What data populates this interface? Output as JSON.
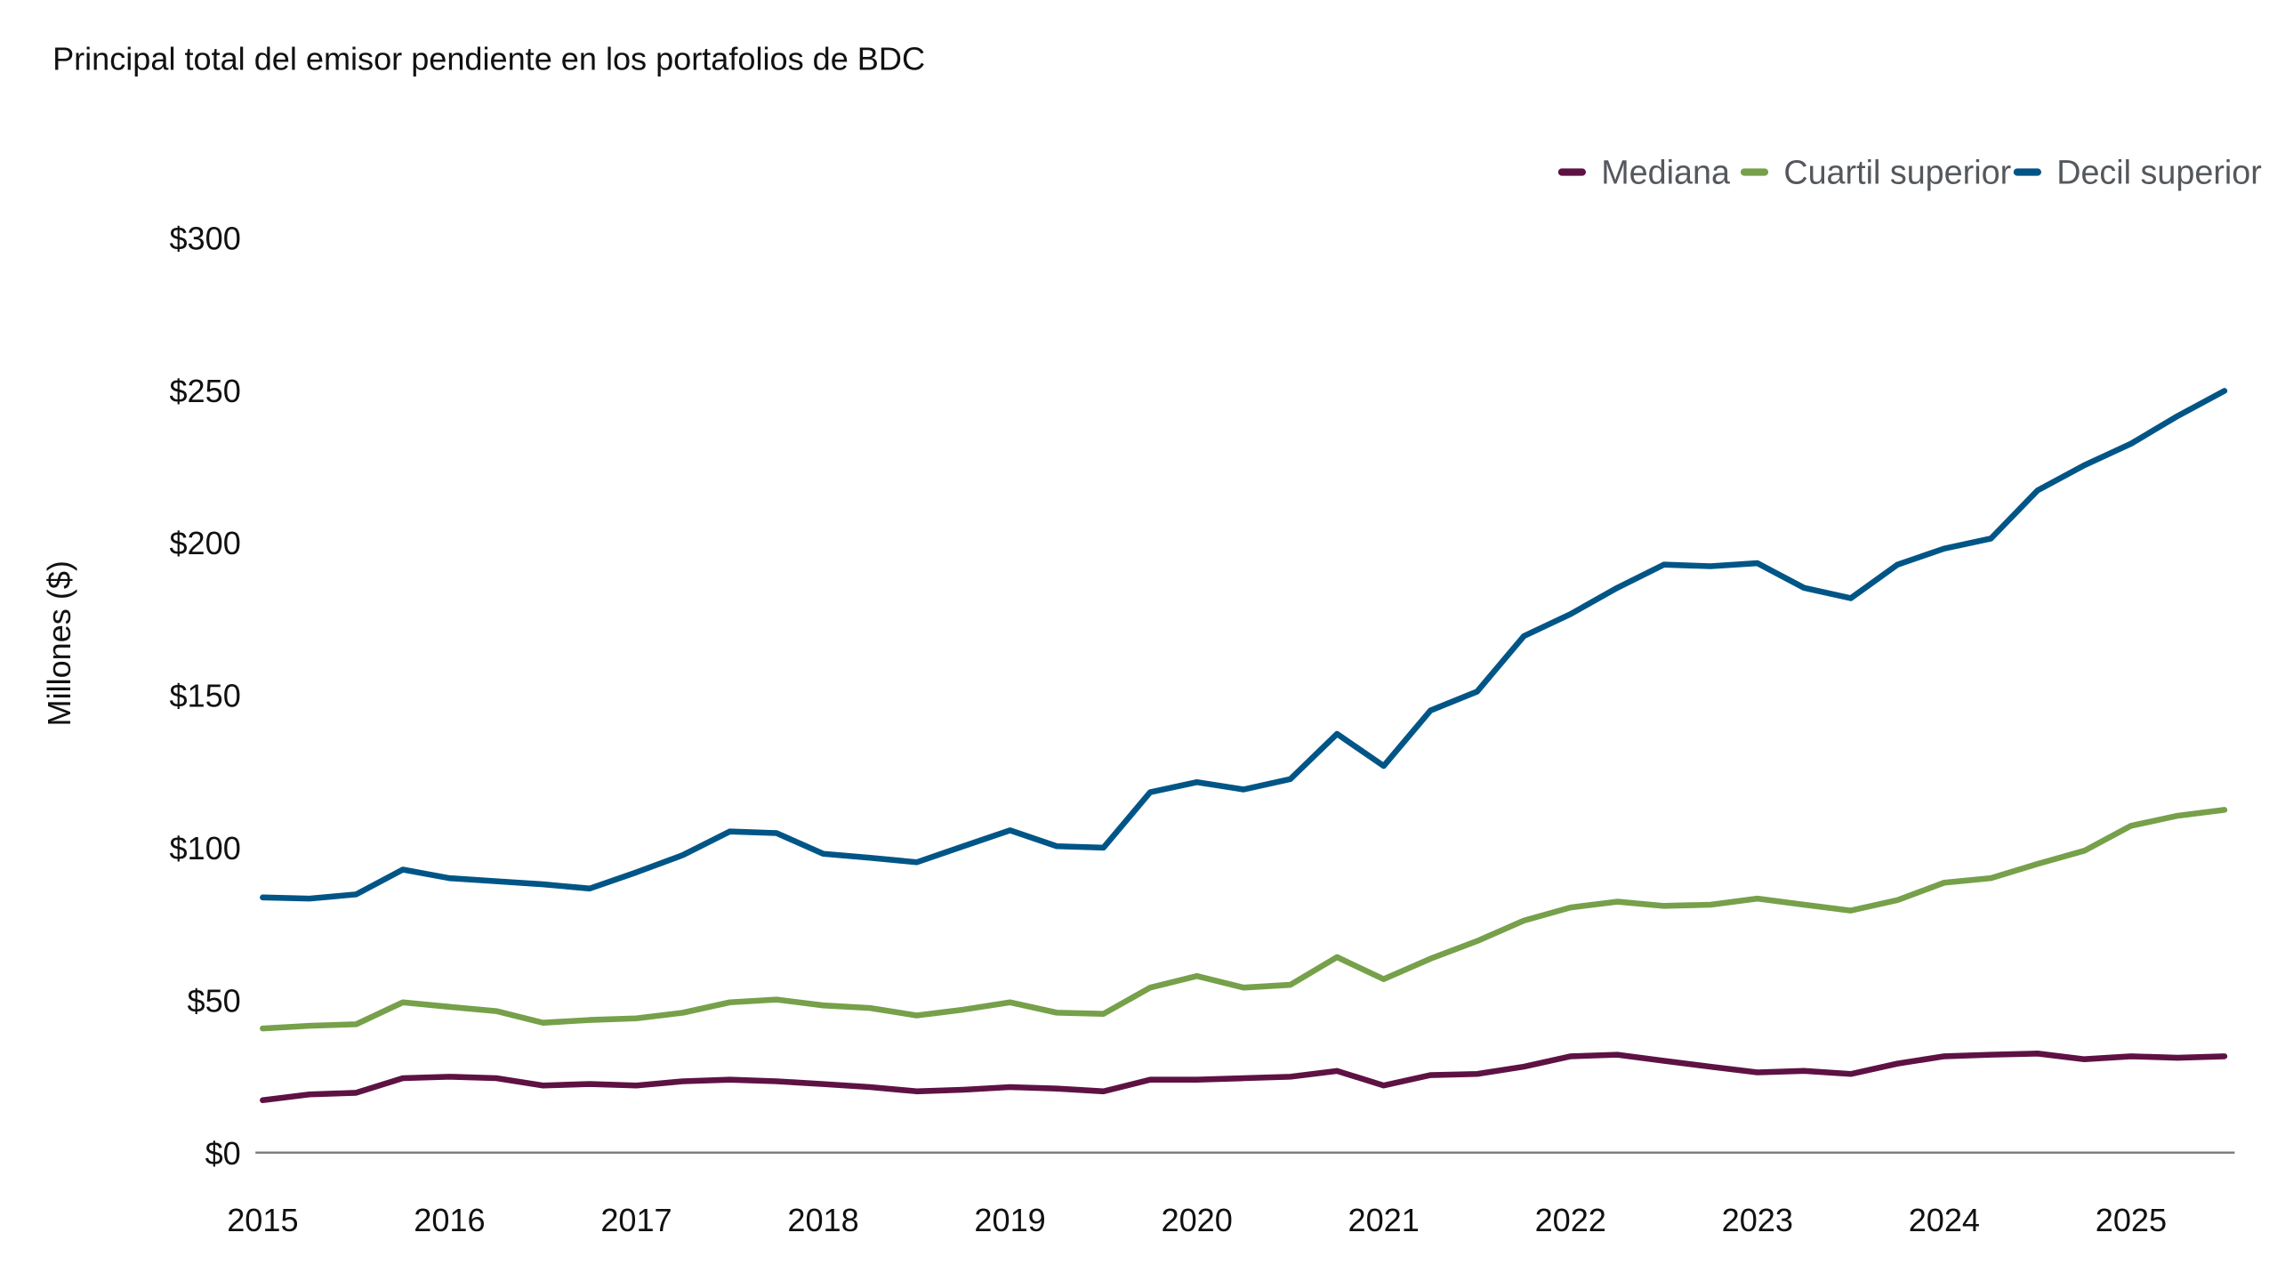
{
  "chart_data": {
    "type": "line",
    "title": "Principal total del emisor pendiente en los portafolios de BDC",
    "xlabel": "",
    "ylabel": "Millones ($)",
    "ylim": [
      0,
      300
    ],
    "xlim": [
      2015,
      2025.5
    ],
    "yticks": [
      0,
      50,
      100,
      150,
      200,
      250,
      300
    ],
    "ytick_labels": [
      "$0",
      "$50",
      "$100",
      "$150",
      "$200",
      "$250",
      "$300"
    ],
    "xtick_labels": [
      "2015",
      "2016",
      "2017",
      "2018",
      "2019",
      "2020",
      "2021",
      "2022",
      "2023",
      "2024",
      "2025"
    ],
    "grid": false,
    "legend_position": "top-right",
    "x": [
      2015,
      2015.25,
      2015.5,
      2015.75,
      2016,
      2016.25,
      2016.5,
      2016.75,
      2017,
      2017.25,
      2017.5,
      2017.75,
      2018,
      2018.25,
      2018.5,
      2018.75,
      2019,
      2019.25,
      2019.5,
      2019.75,
      2020,
      2020.25,
      2020.5,
      2020.75,
      2021,
      2021.25,
      2021.5,
      2021.75,
      2022,
      2022.25,
      2022.5,
      2022.75,
      2023,
      2023.25,
      2023.5,
      2023.75,
      2024,
      2024.25,
      2024.5,
      2024.75,
      2025,
      2025.25,
      2025.5
    ],
    "series": [
      {
        "name": "Mediana",
        "color": "#5e1243",
        "values": [
          17.2,
          19.1,
          19.6,
          24.4,
          24.9,
          24.4,
          22,
          22.5,
          22,
          23.4,
          23.9,
          23.4,
          22.5,
          21.5,
          20.1,
          20.6,
          21.5,
          21,
          20.1,
          23.9,
          23.9,
          24.4,
          24.9,
          26.8,
          22,
          25.4,
          25.8,
          28.2,
          31.6,
          32.1,
          30.1,
          28.2,
          26.3,
          26.8,
          25.8,
          29.2,
          31.6,
          32.1,
          32.5,
          30.6,
          31.6,
          31.1,
          31.6
        ]
      },
      {
        "name": "Cuartil superior",
        "color": "#76a04a",
        "values": [
          40.7,
          41.6,
          42.1,
          49.3,
          47.8,
          46.4,
          42.6,
          43.5,
          44,
          45.9,
          49.3,
          50.2,
          48.3,
          47.4,
          45,
          46.9,
          49.3,
          45.9,
          45.5,
          54.1,
          57.9,
          54.1,
          55,
          64.1,
          56.9,
          63.6,
          69.4,
          76.1,
          80.4,
          82.3,
          80.9,
          81.3,
          83.3,
          81.3,
          79.4,
          82.8,
          88.5,
          90,
          94.7,
          99,
          107.2,
          110.5,
          112.4
        ]
      },
      {
        "name": "Decil superior",
        "color": "#005587",
        "values": [
          83.7,
          83.3,
          84.7,
          92.8,
          90,
          89,
          88,
          86.6,
          91.9,
          97.6,
          105.3,
          104.8,
          98,
          96.7,
          95.2,
          100.5,
          105.7,
          100.5,
          100,
          118.2,
          121.5,
          119.1,
          122.5,
          137.3,
          126.8,
          145,
          151.2,
          169.4,
          176.6,
          185.2,
          192.8,
          192.3,
          193.3,
          185.2,
          181.8,
          192.8,
          198.1,
          201.4,
          217.2,
          225.4,
          232.5,
          241.6,
          249.8
        ]
      }
    ]
  }
}
